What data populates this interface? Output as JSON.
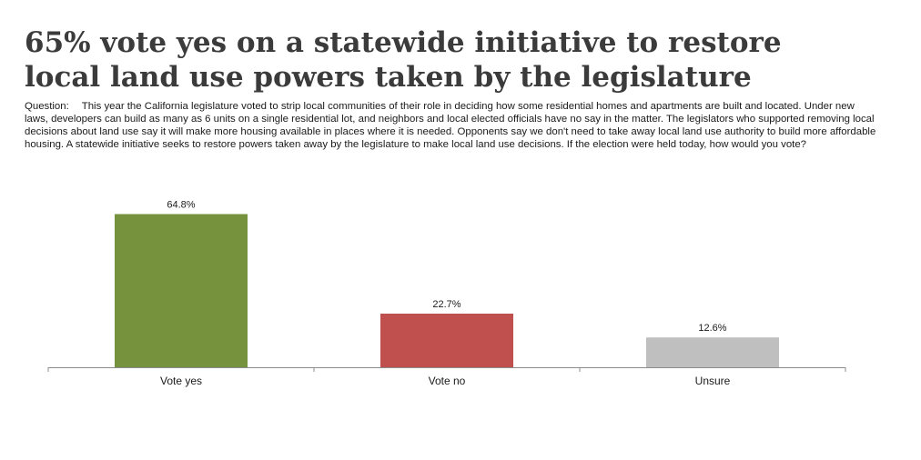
{
  "title_lines": [
    "65% vote yes on a statewide initiative to restore",
    "local land use powers taken by the legislature"
  ],
  "question": {
    "label": "Question:",
    "text": "This year the California legislature voted to strip local communities of their role in deciding how some residential homes and apartments are built and located. Under new laws, developers can build as many as 6 units on a single residential lot, and neighbors and local elected officials have no say in the matter. The legislators who supported removing local decisions about land use say it will make more housing available in places where it is needed. Opponents say we don't need to take away local land use authority to build more affordable housing. A statewide initiative seeks to restore powers taken away by the legislature to make local land use decisions. If the election were held today, how would you vote?"
  },
  "chart_data": {
    "type": "bar",
    "categories": [
      "Vote yes",
      "Vote no",
      "Unsure"
    ],
    "values": [
      64.8,
      22.7,
      12.6
    ],
    "data_labels": [
      "64.8%",
      "22.7%",
      "12.6%"
    ],
    "colors": [
      "#76923c",
      "#c0504d",
      "#bfbfbf"
    ],
    "ylim": [
      0,
      70
    ],
    "grid": false,
    "legend": "none",
    "title": "",
    "xlabel": "",
    "ylabel": ""
  }
}
